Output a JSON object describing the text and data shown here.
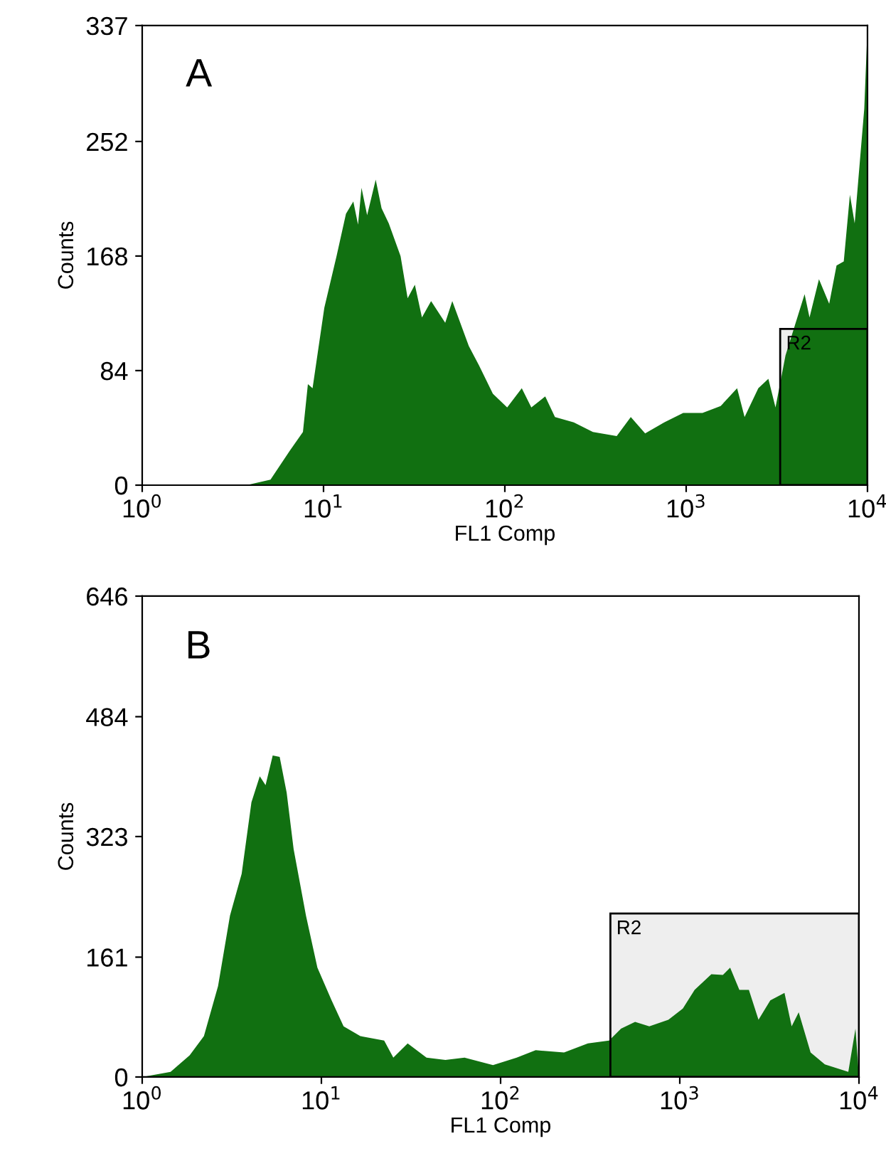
{
  "chart_data": [
    {
      "type": "area",
      "xlabel": "FL1 Comp",
      "ylabel": "Counts",
      "annotations": [
        "A"
      ],
      "log": "x",
      "grid": false,
      "xlim": [
        1,
        10000
      ],
      "xticks": [
        {
          "value": 1,
          "label": "10$^{0}$"
        },
        {
          "value": 10,
          "label": "10$^{1}$"
        },
        {
          "value": 100,
          "label": "10$^{2}$"
        },
        {
          "value": 1000,
          "label": "10$^{3}$"
        },
        {
          "value": 10000,
          "label": "10$^{4}$"
        }
      ],
      "ylim": [
        0,
        337
      ],
      "yticks": [
        0,
        84,
        168,
        252,
        337
      ],
      "bands": [
        {
          "axis": "x",
          "from": 3300,
          "to": 10000,
          "label": "R2"
        }
      ],
      "series": [
        {
          "color": "#117011",
          "x": [
            3.76,
            5.1,
            6.5,
            7.7,
            8.2,
            8.7,
            10.1,
            11.8,
            13.3,
            14.6,
            15.5,
            16.2,
            17.4,
            19.4,
            20.9,
            22.9,
            26.6,
            29.1,
            31.9,
            34.9,
            39.2,
            46.9,
            51.3,
            63.3,
            71.9,
            85.9,
            103,
            124,
            140,
            167,
            189,
            240,
            306,
            414,
            495,
            594,
            757,
            963,
            1230,
            1550,
            1910,
            2100,
            2500,
            2840,
            3110,
            3530,
            4500,
            4790,
            5400,
            6150,
            6750,
            7400,
            8000,
            8500,
            9600,
            10000
          ],
          "values": [
            0,
            4,
            25,
            39,
            74,
            71,
            130,
            168,
            199,
            208,
            191,
            218,
            198,
            224,
            203,
            192,
            168,
            137,
            147,
            123,
            135,
            119,
            135,
            102,
            88,
            67,
            57,
            71,
            57,
            65,
            50,
            46,
            39,
            36,
            50,
            38,
            46,
            53,
            53,
            58,
            71,
            50,
            71,
            78,
            57,
            95,
            140,
            123,
            151,
            133,
            161,
            164,
            213,
            192,
            276,
            335
          ]
        }
      ]
    },
    {
      "type": "area",
      "xlabel": "FL1 Comp",
      "ylabel": "Counts",
      "annotations": [
        "B"
      ],
      "log": "x",
      "grid": false,
      "xlim": [
        1,
        10000
      ],
      "xticks": [
        {
          "value": 1,
          "label": "10$^{0}$"
        },
        {
          "value": 10,
          "label": "10$^{1}$"
        },
        {
          "value": 100,
          "label": "10$^{2}$"
        },
        {
          "value": 1000,
          "label": "10$^{3}$"
        },
        {
          "value": 10000,
          "label": "10$^{4}$"
        }
      ],
      "ylim": [
        0,
        646
      ],
      "yticks": [
        0,
        161,
        323,
        484,
        646
      ],
      "bands": [
        {
          "axis": "x",
          "from": 410,
          "to": 10000,
          "label": "R2"
        }
      ],
      "series": [
        {
          "color": "#117011",
          "x": [
            1,
            1.44,
            1.84,
            2.21,
            2.65,
            3.09,
            3.59,
            4.07,
            4.53,
            4.88,
            5.35,
            5.85,
            6.4,
            7.0,
            8.2,
            9.5,
            11.4,
            13.3,
            16.5,
            22.4,
            25.2,
            30.3,
            38.6,
            49.2,
            62.9,
            90.7,
            123,
            157,
            226,
            307,
            403,
            470,
            563,
            676,
            864,
            1040,
            1210,
            1500,
            1740,
            1910,
            2150,
            2430,
            2750,
            3200,
            3840,
            4210,
            4610,
            5370,
            6450,
            8720,
            9560,
            10000
          ],
          "values": [
            0,
            7,
            29,
            55,
            122,
            217,
            273,
            369,
            404,
            392,
            432,
            430,
            382,
            306,
            217,
            147,
            103,
            68,
            55,
            49,
            26,
            45,
            26,
            23,
            26,
            16,
            26,
            36,
            33,
            45,
            49,
            65,
            74,
            68,
            77,
            92,
            117,
            138,
            137,
            147,
            117,
            117,
            77,
            103,
            113,
            68,
            87,
            33,
            17,
            7,
            65,
            0
          ]
        }
      ]
    }
  ]
}
